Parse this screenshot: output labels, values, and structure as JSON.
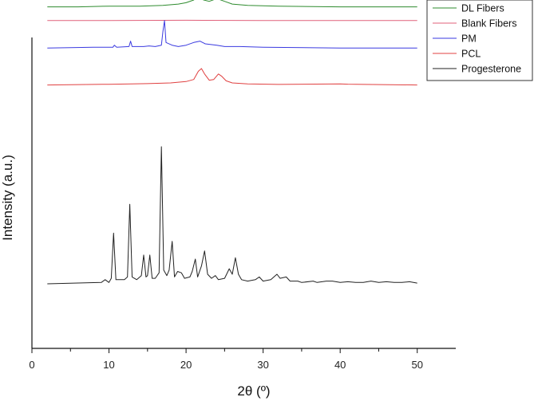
{
  "chart_data": {
    "type": "line",
    "xlabel": "2θ (º)",
    "ylabel": "Intensity (a.u.)",
    "xlim": [
      0,
      55
    ],
    "x_ticks": [
      0,
      10,
      20,
      30,
      40,
      50
    ],
    "grid": false,
    "legend_position": "top-right",
    "y_units": "offset intensity (a.u.); Progesterone strongest peak = 1.0",
    "series": [
      {
        "name": "DL Fibers",
        "color": "#2e8b2e",
        "offset": 2.02,
        "points": [
          [
            2,
            0.0
          ],
          [
            6,
            0.0
          ],
          [
            10,
            0.005
          ],
          [
            14,
            0.005
          ],
          [
            17,
            0.01
          ],
          [
            19,
            0.02
          ],
          [
            20,
            0.03
          ],
          [
            21,
            0.05
          ],
          [
            21.5,
            0.08
          ],
          [
            21.8,
            0.06
          ],
          [
            22.3,
            0.05
          ],
          [
            23,
            0.04
          ],
          [
            24,
            0.06
          ],
          [
            25,
            0.04
          ],
          [
            26,
            0.02
          ],
          [
            28,
            0.01
          ],
          [
            32,
            0.005
          ],
          [
            40,
            0.0
          ],
          [
            50,
            0.0
          ]
        ]
      },
      {
        "name": "Blank Fibers",
        "color": "#e0607a",
        "offset": 1.92,
        "points": [
          [
            2,
            0.0
          ],
          [
            10,
            0.0
          ],
          [
            20,
            0.002
          ],
          [
            30,
            0.0
          ],
          [
            40,
            0.0
          ],
          [
            50,
            0.0
          ]
        ]
      },
      {
        "name": "PM",
        "color": "#3a3ae0",
        "offset": 1.72,
        "points": [
          [
            2,
            0.0
          ],
          [
            8,
            0.005
          ],
          [
            10.5,
            0.005
          ],
          [
            10.7,
            0.02
          ],
          [
            11,
            0.005
          ],
          [
            12.6,
            0.01
          ],
          [
            12.8,
            0.05
          ],
          [
            13,
            0.01
          ],
          [
            14.5,
            0.01
          ],
          [
            15.2,
            0.015
          ],
          [
            16,
            0.01
          ],
          [
            16.8,
            0.02
          ],
          [
            17,
            0.12
          ],
          [
            17.2,
            0.2
          ],
          [
            17.4,
            0.04
          ],
          [
            18.2,
            0.02
          ],
          [
            19,
            0.01
          ],
          [
            20,
            0.02
          ],
          [
            21,
            0.04
          ],
          [
            21.8,
            0.05
          ],
          [
            22.5,
            0.03
          ],
          [
            24,
            0.02
          ],
          [
            25,
            0.01
          ],
          [
            27,
            0.01
          ],
          [
            30,
            0.005
          ],
          [
            40,
            0.0
          ],
          [
            50,
            0.0
          ]
        ]
      },
      {
        "name": "PCL",
        "color": "#e04040",
        "offset": 1.45,
        "points": [
          [
            2,
            0.0
          ],
          [
            10,
            0.005
          ],
          [
            15,
            0.01
          ],
          [
            18,
            0.015
          ],
          [
            20,
            0.025
          ],
          [
            21,
            0.04
          ],
          [
            21.6,
            0.1
          ],
          [
            22,
            0.12
          ],
          [
            22.4,
            0.08
          ],
          [
            23,
            0.035
          ],
          [
            23.6,
            0.04
          ],
          [
            24.2,
            0.08
          ],
          [
            24.6,
            0.065
          ],
          [
            25.2,
            0.03
          ],
          [
            26,
            0.015
          ],
          [
            28,
            0.008
          ],
          [
            32,
            0.004
          ],
          [
            40,
            0.008
          ],
          [
            41,
            0.006
          ],
          [
            50,
            0.0
          ]
        ]
      },
      {
        "name": "Progesterone",
        "color": "#222222",
        "offset": 0.0,
        "points": [
          [
            2,
            0.0
          ],
          [
            9,
            0.01
          ],
          [
            9.5,
            0.03
          ],
          [
            10,
            0.01
          ],
          [
            10.3,
            0.04
          ],
          [
            10.6,
            0.37
          ],
          [
            10.9,
            0.03
          ],
          [
            12,
            0.03
          ],
          [
            12.4,
            0.05
          ],
          [
            12.7,
            0.58
          ],
          [
            13,
            0.05
          ],
          [
            13.6,
            0.03
          ],
          [
            14.2,
            0.06
          ],
          [
            14.5,
            0.21
          ],
          [
            14.8,
            0.05
          ],
          [
            15,
            0.06
          ],
          [
            15.3,
            0.21
          ],
          [
            15.6,
            0.04
          ],
          [
            16,
            0.04
          ],
          [
            16.5,
            0.08
          ],
          [
            16.8,
            1.0
          ],
          [
            17.1,
            0.1
          ],
          [
            17.5,
            0.06
          ],
          [
            17.8,
            0.1
          ],
          [
            18.2,
            0.31
          ],
          [
            18.5,
            0.05
          ],
          [
            18.9,
            0.09
          ],
          [
            19.4,
            0.08
          ],
          [
            19.8,
            0.04
          ],
          [
            20.5,
            0.05
          ],
          [
            20.8,
            0.09
          ],
          [
            21.2,
            0.18
          ],
          [
            21.5,
            0.05
          ],
          [
            22,
            0.13
          ],
          [
            22.4,
            0.24
          ],
          [
            22.8,
            0.07
          ],
          [
            23.3,
            0.04
          ],
          [
            23.8,
            0.06
          ],
          [
            24.2,
            0.03
          ],
          [
            25,
            0.04
          ],
          [
            25.6,
            0.11
          ],
          [
            26,
            0.07
          ],
          [
            26.4,
            0.19
          ],
          [
            26.8,
            0.07
          ],
          [
            27.2,
            0.03
          ],
          [
            28,
            0.02
          ],
          [
            29,
            0.03
          ],
          [
            29.5,
            0.05
          ],
          [
            30,
            0.02
          ],
          [
            31,
            0.03
          ],
          [
            31.8,
            0.07
          ],
          [
            32.2,
            0.04
          ],
          [
            33,
            0.05
          ],
          [
            33.5,
            0.02
          ],
          [
            34.5,
            0.02
          ],
          [
            35,
            0.01
          ],
          [
            36.5,
            0.02
          ],
          [
            37,
            0.01
          ],
          [
            38.2,
            0.02
          ],
          [
            39,
            0.02
          ],
          [
            40,
            0.01
          ],
          [
            41,
            0.015
          ],
          [
            42,
            0.01
          ],
          [
            43,
            0.01
          ],
          [
            44,
            0.02
          ],
          [
            45,
            0.01
          ],
          [
            46,
            0.015
          ],
          [
            47,
            0.01
          ],
          [
            48,
            0.01
          ],
          [
            49,
            0.015
          ],
          [
            50,
            0.005
          ]
        ]
      }
    ]
  }
}
